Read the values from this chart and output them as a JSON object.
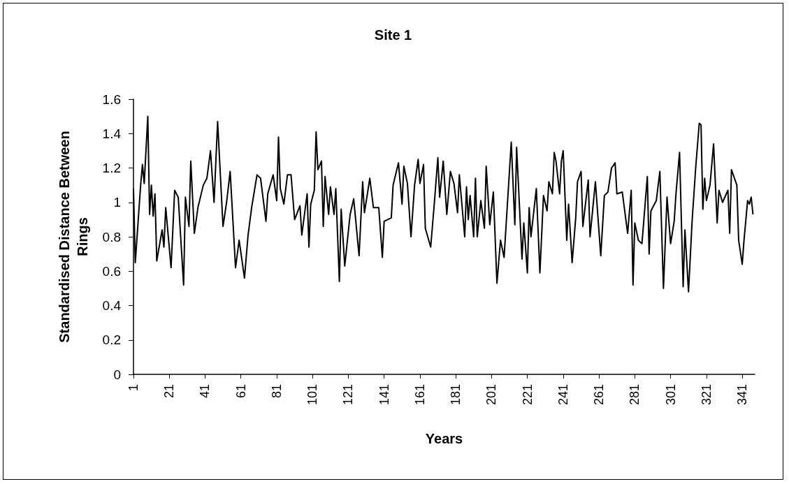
{
  "chart_data": {
    "type": "line",
    "title": "Site 1",
    "xlabel": "Years",
    "ylabel": "Standardised Distance Between Rings",
    "x": [
      1,
      2,
      3,
      5,
      6,
      7,
      9,
      10,
      11,
      12,
      13,
      14,
      17,
      18,
      19,
      22,
      24,
      26,
      27,
      29,
      30,
      32,
      33,
      35,
      37,
      40,
      42,
      44,
      46,
      48,
      51,
      53,
      55,
      58,
      60,
      63,
      65,
      67,
      70,
      72,
      75,
      76,
      79,
      81,
      82,
      83,
      85,
      87,
      89,
      91,
      94,
      95,
      98,
      99,
      100,
      102,
      103,
      104,
      106,
      107,
      108,
      110,
      111,
      113,
      114,
      116,
      117,
      119,
      122,
      124,
      127,
      129,
      130,
      133,
      135,
      138,
      140,
      141,
      145,
      146,
      149,
      151,
      152,
      154,
      156,
      158,
      160,
      161,
      163,
      164,
      167,
      169,
      171,
      172,
      174,
      176,
      178,
      180,
      182,
      183,
      186,
      187,
      188,
      189,
      191,
      192,
      193,
      195,
      197,
      198,
      200,
      202,
      204,
      206,
      208,
      212,
      214,
      215,
      218,
      219,
      221,
      222,
      223,
      226,
      228,
      230,
      232,
      233,
      235,
      236,
      237,
      239,
      240,
      241,
      243,
      244,
      246,
      248,
      249,
      251,
      252,
      255,
      256,
      259,
      261,
      262,
      264,
      266,
      268,
      270,
      271,
      274,
      277,
      279,
      280,
      281,
      283,
      285,
      288,
      289,
      290,
      293,
      295,
      297,
      299,
      301,
      303,
      304,
      306,
      308,
      309,
      311,
      313,
      315,
      317,
      318,
      319,
      320,
      321,
      323,
      325,
      327,
      328,
      330,
      333,
      334,
      335,
      338,
      339,
      341,
      342,
      344,
      345,
      346,
      347
    ],
    "series": [
      {
        "color": "#000000",
        "values": [
          1.08,
          0.65,
          0.8,
          1.1,
          1.22,
          1.11,
          1.5,
          0.93,
          1.1,
          0.92,
          1.05,
          0.66,
          0.84,
          0.74,
          0.97,
          0.62,
          1.07,
          1.03,
          0.86,
          0.52,
          1.03,
          0.86,
          1.24,
          0.82,
          0.97,
          1.1,
          1.14,
          1.3,
          1.0,
          1.47,
          0.86,
          1.0,
          1.18,
          0.62,
          0.78,
          0.56,
          0.81,
          0.97,
          1.16,
          1.14,
          0.89,
          1.05,
          1.16,
          1.01,
          1.38,
          1.08,
          0.99,
          1.16,
          1.16,
          0.9,
          0.98,
          0.81,
          1.05,
          0.74,
          0.99,
          1.07,
          1.41,
          1.19,
          1.24,
          0.86,
          1.15,
          0.93,
          1.09,
          0.93,
          1.08,
          0.54,
          0.96,
          0.63,
          0.93,
          1.02,
          0.69,
          1.12,
          0.94,
          1.14,
          0.97,
          0.97,
          0.68,
          0.89,
          0.91,
          1.1,
          1.23,
          0.99,
          1.21,
          1.11,
          0.8,
          1.1,
          1.25,
          1.11,
          1.22,
          0.85,
          0.74,
          0.99,
          1.26,
          1.03,
          1.24,
          0.93,
          1.18,
          1.11,
          0.94,
          1.16,
          0.8,
          1.09,
          0.9,
          1.04,
          0.8,
          1.14,
          0.8,
          1.01,
          0.85,
          1.21,
          0.87,
          1.06,
          0.53,
          0.78,
          0.68,
          1.35,
          0.87,
          1.32,
          0.67,
          0.88,
          0.59,
          0.97,
          0.8,
          1.08,
          0.59,
          1.04,
          0.95,
          1.12,
          1.05,
          1.29,
          1.24,
          1.05,
          1.24,
          1.3,
          0.78,
          0.99,
          0.65,
          0.91,
          1.12,
          1.18,
          0.86,
          1.13,
          0.8,
          1.12,
          0.83,
          0.69,
          1.04,
          1.06,
          1.2,
          1.23,
          1.05,
          1.06,
          0.82,
          1.07,
          0.52,
          0.88,
          0.78,
          0.76,
          1.15,
          0.7,
          0.95,
          1.01,
          1.18,
          0.5,
          1.03,
          0.76,
          0.89,
          1.05,
          1.29,
          0.51,
          0.84,
          0.48,
          0.89,
          1.2,
          1.46,
          1.45,
          0.96,
          1.14,
          1.01,
          1.1,
          1.34,
          0.88,
          1.07,
          1.0,
          1.07,
          0.82,
          1.19,
          1.1,
          0.78,
          0.64,
          0.78,
          1.01,
          0.99,
          1.03,
          0.93
        ]
      }
    ],
    "xlim": [
      1,
      348
    ],
    "xticks": [
      1,
      21,
      41,
      61,
      81,
      101,
      121,
      141,
      161,
      181,
      201,
      221,
      241,
      261,
      281,
      301,
      321,
      341
    ],
    "ylim": [
      0,
      1.6
    ],
    "yticks": [
      0,
      0.2,
      0.4,
      0.6,
      0.8,
      1,
      1.2,
      1.4,
      1.6
    ],
    "marker": "none",
    "line_style": "solid"
  }
}
